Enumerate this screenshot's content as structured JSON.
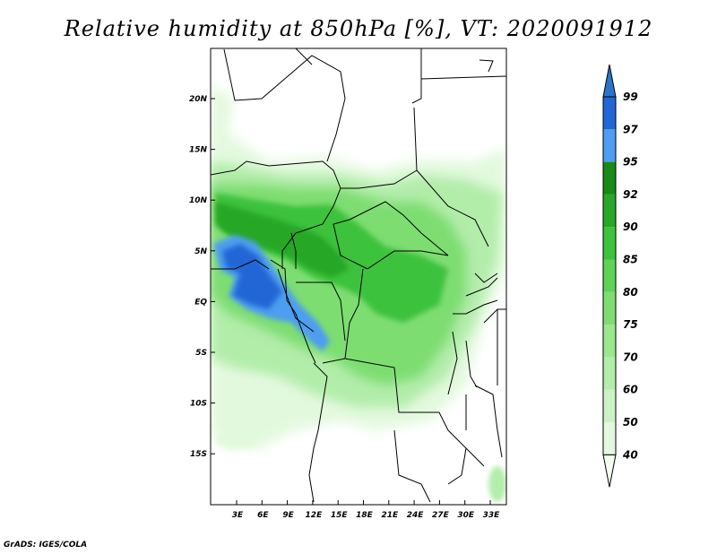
{
  "title": "Relative humidity at 850hPa [%], VT: 2020091912",
  "credit": "GrADS: IGES/COLA",
  "lat_ticks": [
    "20N",
    "15N",
    "10N",
    "5N",
    "EQ",
    "5S",
    "10S",
    "15S"
  ],
  "lon_ticks": [
    "3E",
    "6E",
    "9E",
    "12E",
    "15E",
    "18E",
    "21E",
    "24E",
    "27E",
    "30E",
    "33E"
  ],
  "colorbar": {
    "levels": [
      "40",
      "50",
      "60",
      "70",
      "75",
      "80",
      "85",
      "90",
      "92",
      "95",
      "97",
      "99"
    ],
    "colors": [
      "#f3fdf1",
      "#e3f9de",
      "#cbf2c4",
      "#b2edaa",
      "#9ae78e",
      "#7ddd71",
      "#5fd257",
      "#3cc23c",
      "#28a728",
      "#178a17",
      "#4d9df0",
      "#2166d6",
      "#2a74c9"
    ]
  }
}
